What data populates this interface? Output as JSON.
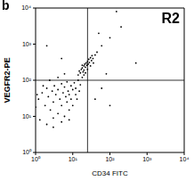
{
  "chart_data": {
    "type": "scatter",
    "panel_label": "b",
    "annotation": "R2",
    "x_label": "CD34 FITC",
    "y_label": "VEGFR2-PE",
    "log": true,
    "grid": false,
    "marker": "dot",
    "color": "#000000",
    "x": [
      1.2,
      1.5,
      1.8,
      2,
      2.2,
      2.5,
      2.8,
      3,
      3.2,
      3.5,
      4,
      4,
      4.5,
      5,
      5,
      5.5,
      6,
      6,
      6.5,
      7,
      7,
      7.5,
      8,
      8,
      9,
      9,
      10,
      10,
      11,
      12,
      12,
      13,
      14,
      15,
      1.3,
      2,
      3,
      1,
      1.6,
      2.4,
      4,
      3,
      5,
      8,
      1.1,
      16,
      18,
      6,
      14,
      15,
      16,
      17,
      18,
      19,
      20,
      20,
      21,
      22,
      23,
      24,
      25,
      26,
      27,
      28,
      30,
      32,
      33,
      35,
      20,
      22,
      25,
      18,
      30,
      40,
      45,
      36,
      60,
      100,
      200,
      500,
      150,
      50,
      80,
      40,
      60,
      100,
      5,
      2
    ],
    "values": [
      30,
      45,
      20,
      60,
      35,
      15,
      50,
      25,
      70,
      40,
      12,
      55,
      30,
      80,
      20,
      45,
      10,
      65,
      35,
      25,
      90,
      50,
      15,
      40,
      70,
      30,
      55,
      20,
      85,
      40,
      60,
      30,
      100,
      50,
      8,
      6,
      9,
      18,
      70,
      100,
      120,
      5,
      7,
      8,
      40,
      75,
      120,
      150,
      140,
      180,
      160,
      200,
      220,
      170,
      250,
      190,
      280,
      230,
      300,
      260,
      330,
      280,
      380,
      310,
      420,
      350,
      480,
      400,
      140,
      160,
      200,
      260,
      250,
      500,
      600,
      300,
      900,
      1500,
      3000,
      300,
      8000,
      2000,
      150,
      30,
      60,
      20,
      400,
      900
    ],
    "xlim": [
      1,
      10000
    ],
    "ylim": [
      1,
      10000
    ],
    "xticks": [
      {
        "value": 1,
        "label": "10⁰"
      },
      {
        "value": 10,
        "label": "10¹"
      },
      {
        "value": 100,
        "label": "10²"
      },
      {
        "value": 1000,
        "label": "10³"
      },
      {
        "value": 10000,
        "label": "10⁴"
      }
    ],
    "yticks": [
      {
        "value": 1,
        "label": "10⁰"
      },
      {
        "value": 10,
        "label": "10¹"
      },
      {
        "value": 100,
        "label": "10²"
      },
      {
        "value": 1000,
        "label": "10³"
      },
      {
        "value": 10000,
        "label": "10⁴"
      }
    ],
    "gates": {
      "x": 25,
      "y": 100
    }
  }
}
